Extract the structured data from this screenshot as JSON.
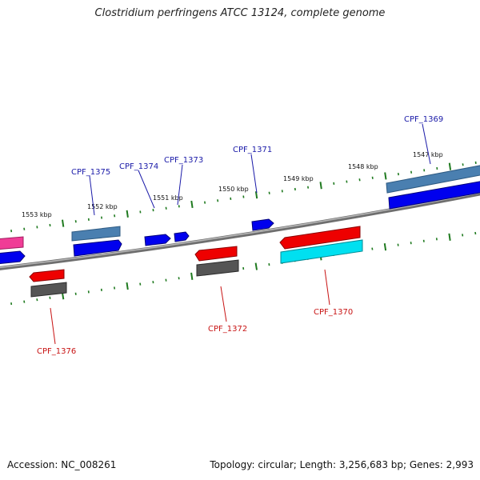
{
  "title": "Clostridium perfringens ATCC 13124, complete genome",
  "footer": {
    "accession": "Accession: NC_008261",
    "stats": "Topology: circular; Length: 3,256,683 bp; Genes: 2,993"
  },
  "colors": {
    "forward_label": "#1a1aa8",
    "reverse_label": "#c81414",
    "backbone": "#808080",
    "tick": "#1f7a1f",
    "cds_blue": "#0000ee",
    "cds_steel": "#4a7fb0",
    "cds_red": "#ee0000",
    "cds_gray": "#555555",
    "cds_cyan": "#00e0f0",
    "cds_pink": "#f03c96"
  },
  "kbp_labels": [
    "1547 kbp",
    "1548 kbp",
    "1549 kbp",
    "1550 kbp",
    "1551 kbp",
    "1552 kbp",
    "1553 kbp"
  ],
  "genes": {
    "forward": [
      "CPF_1369",
      "CPF_1371",
      "CPF_1373",
      "CPF_1374",
      "CPF_1375"
    ],
    "reverse": [
      "CPF_1370",
      "CPF_1372",
      "CPF_1376"
    ]
  }
}
